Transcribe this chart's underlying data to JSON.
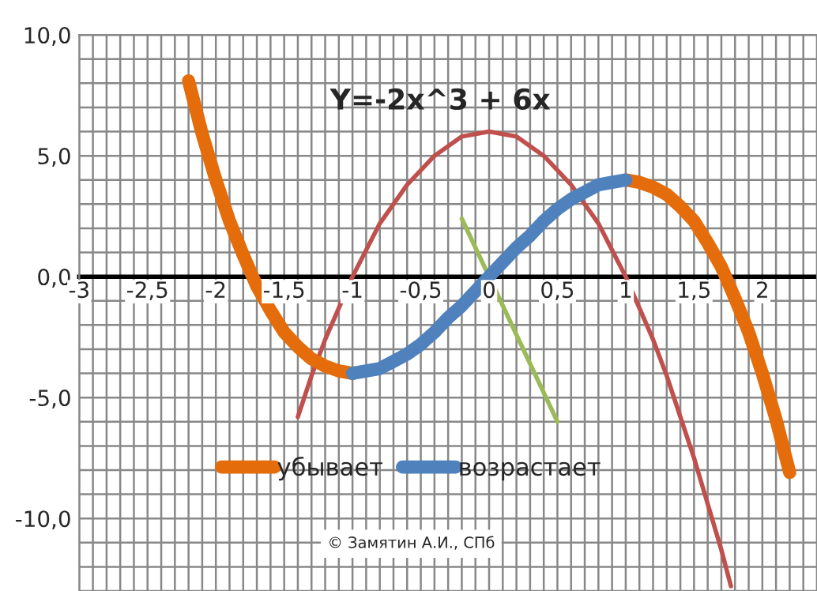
{
  "chart_data": {
    "type": "line",
    "title": "Y=-2x^3 + 6x",
    "series": [
      {
        "name": "убывает",
        "color": "#e46c0a",
        "x": [
          -2.2,
          -2.1,
          -2.0,
          -1.9,
          -1.8,
          -1.7,
          -1.6,
          -1.5,
          -1.4,
          -1.3,
          -1.2,
          -1.1,
          -1.0,
          0,
          1.0,
          1.1,
          1.2,
          1.3,
          1.4,
          1.5,
          1.6,
          1.7,
          1.8,
          1.9,
          2.0,
          2.1,
          2.2
        ],
        "values": [
          8.1,
          5.9,
          4.0,
          2.3,
          0.9,
          -0.4,
          -1.4,
          -2.3,
          -2.9,
          -3.4,
          -3.7,
          -3.9,
          -4.0,
          null,
          4.0,
          3.9,
          3.7,
          3.4,
          2.9,
          2.3,
          1.4,
          0.4,
          -0.9,
          -2.3,
          -4.0,
          -5.9,
          -8.1
        ]
      },
      {
        "name": "возрастает",
        "color": "#4f81bd",
        "x": [
          -1.0,
          -0.9,
          -0.8,
          -0.7,
          -0.6,
          -0.5,
          -0.4,
          -0.3,
          -0.2,
          -0.1,
          0,
          0.1,
          0.2,
          0.3,
          0.4,
          0.5,
          0.6,
          0.7,
          0.8,
          0.9,
          1.0
        ],
        "values": [
          -4.0,
          -3.9,
          -3.8,
          -3.5,
          -3.2,
          -2.8,
          -2.3,
          -1.7,
          -1.2,
          -0.6,
          0,
          0.6,
          1.2,
          1.7,
          2.3,
          2.8,
          3.2,
          3.5,
          3.8,
          3.9,
          4.0
        ]
      },
      {
        "color": "#c0504d",
        "x": [
          -1.4,
          -1.3,
          -1.2,
          -1.1,
          -1.0,
          -0.8,
          -0.6,
          -0.4,
          -0.2,
          0,
          0.2,
          0.4,
          0.6,
          0.8,
          1.0,
          1.1,
          1.2,
          1.3,
          1.4,
          1.5,
          1.6,
          1.7,
          1.77
        ],
        "values": [
          -5.8,
          -4.1,
          -2.6,
          -1.3,
          0,
          2.2,
          3.8,
          5.0,
          5.8,
          6.0,
          5.8,
          5.0,
          3.8,
          2.2,
          0,
          -1.3,
          -2.6,
          -4.1,
          -5.8,
          -7.5,
          -9.4,
          -11.3,
          -12.8
        ]
      },
      {
        "color": "#9bbb59",
        "x": [
          -0.2,
          0.5
        ],
        "values": [
          2.4,
          -6.0
        ]
      }
    ],
    "xlim": [
      -3,
      2.4
    ],
    "ylim": [
      -13,
      10
    ],
    "xticks": [
      -3,
      {
        "value": -2.5,
        "label": "-2,5"
      },
      -2,
      {
        "value": -1.5,
        "label": "-1,5"
      },
      -1,
      {
        "value": -0.5,
        "label": "-0,5"
      },
      0,
      {
        "value": 0.5,
        "label": "0,5"
      },
      1,
      {
        "value": 1.5,
        "label": "1,5"
      },
      2
    ],
    "yticks": [
      {
        "value": -10,
        "label": "-10,0"
      },
      {
        "value": -5,
        "label": "-5,0"
      },
      {
        "value": 0,
        "label": "0,0"
      },
      {
        "value": 5,
        "label": "5,0"
      },
      {
        "value": 10,
        "label": "10,0"
      }
    ],
    "grid": true,
    "legend": "bottom",
    "marker": "none",
    "line_style": "solid",
    "annotations": [
      "© Замятин А.И., СПб"
    ]
  }
}
